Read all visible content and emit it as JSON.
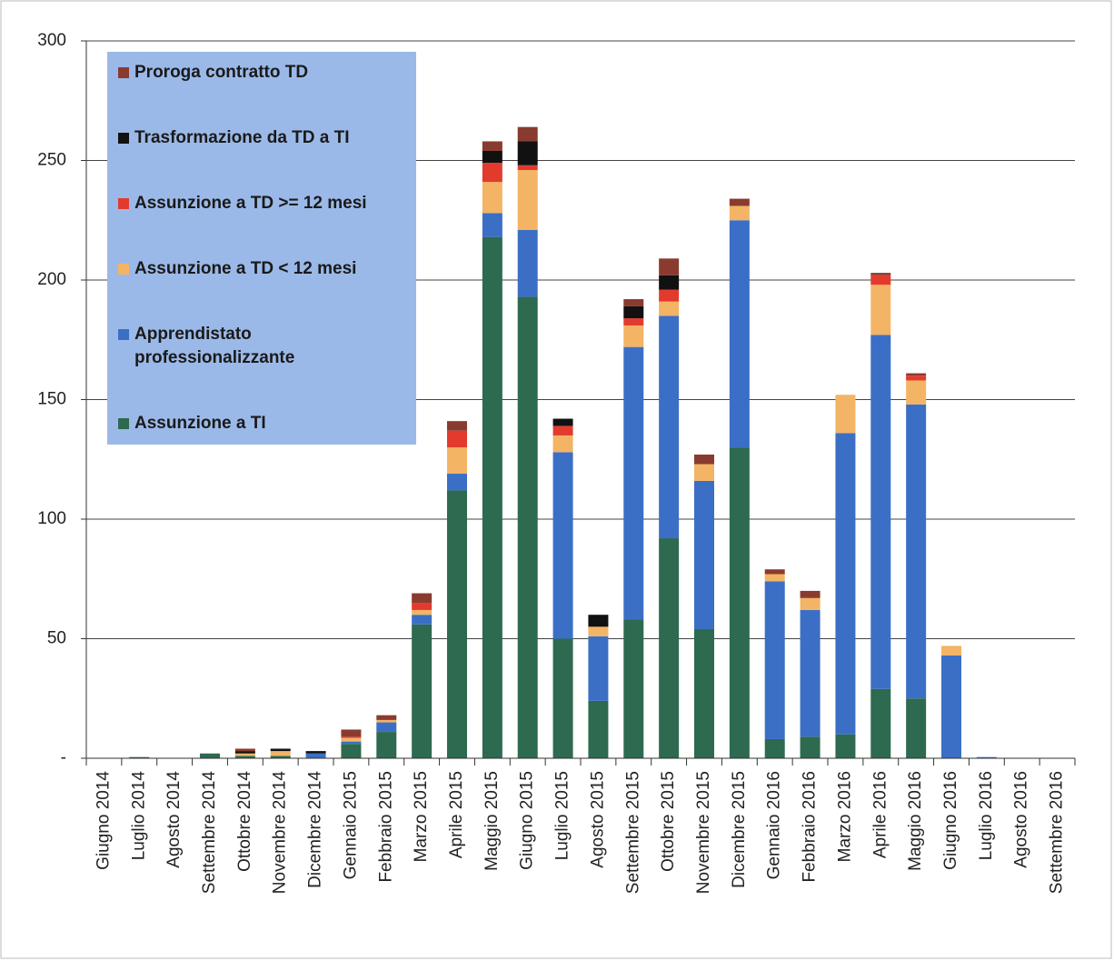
{
  "chart_data": {
    "type": "stacked-bar",
    "categories": [
      "Giugno 2014",
      "Luglio 2014",
      "Agosto 2014",
      "Settembre 2014",
      "Ottobre 2014",
      "Novembre 2014",
      "Dicembre 2014",
      "Gennaio 2015",
      "Febbraio 2015",
      "Marzo 2015",
      "Aprile 2015",
      "Maggio 2015",
      "Giugno 2015",
      "Luglio 2015",
      "Agosto 2015",
      "Settembre 2015",
      "Ottobre 2015",
      "Novembre 2015",
      "Dicembre 2015",
      "Gennaio 2016",
      "Febbraio 2016",
      "Marzo 2016",
      "Aprile 2016",
      "Maggio 2016",
      "Giugno 2016",
      "Luglio 2016",
      "Agosto 2016",
      "Settembre 2016"
    ],
    "series": [
      {
        "name": "Assunzione a TI",
        "color": "#2d6a4f",
        "values": [
          0,
          0.5,
          0,
          2,
          1,
          1,
          0,
          6,
          11,
          56,
          112,
          218,
          193,
          50,
          24,
          58,
          92,
          54,
          130,
          8,
          9,
          10,
          29,
          25,
          0,
          0,
          0,
          0
        ]
      },
      {
        "name": "Apprendistato professionalizzante",
        "color": "#3b6fc6",
        "values": [
          0,
          0,
          0,
          0,
          0,
          0,
          2,
          1,
          4,
          4,
          7,
          10,
          28,
          78,
          27,
          114,
          93,
          62,
          95,
          66,
          53,
          126,
          148,
          123,
          43,
          0.5,
          0,
          0
        ]
      },
      {
        "name": "Assunzione a TD < 12 mesi",
        "color": "#f3b465",
        "values": [
          0,
          0,
          0,
          0,
          1,
          2,
          0,
          1.5,
          1,
          2,
          11,
          13,
          25,
          7,
          4,
          9,
          6,
          7,
          6,
          3,
          5,
          16,
          21,
          10,
          4,
          0,
          0,
          0
        ]
      },
      {
        "name": "Assunzione a TD >= 12 mesi",
        "color": "#e23b2e",
        "values": [
          0,
          0,
          0,
          0,
          0,
          0,
          0,
          0.5,
          0,
          3,
          7,
          8,
          2,
          4,
          0,
          3,
          5,
          0,
          0,
          0,
          0,
          0,
          4,
          2,
          0,
          0,
          0,
          0
        ]
      },
      {
        "name": "Trasformazione da TD a TI",
        "color": "#111111",
        "values": [
          0,
          0,
          0,
          0,
          1,
          1,
          1,
          0,
          0,
          0,
          0,
          5,
          10,
          3,
          5,
          5,
          6,
          0,
          0,
          0,
          0,
          0,
          0,
          0,
          0,
          0,
          0,
          0
        ]
      },
      {
        "name": "Proroga contratto TD",
        "color": "#8a3b2f",
        "values": [
          0,
          0,
          0,
          0,
          1,
          0,
          0,
          3,
          2,
          4,
          4,
          4,
          6,
          0,
          0,
          3,
          7,
          4,
          3,
          2,
          3,
          0,
          1,
          1,
          0,
          0,
          0,
          0
        ]
      }
    ],
    "ylim": [
      0,
      300
    ],
    "yticks": [
      {
        "value": 0,
        "label": "-"
      },
      50,
      100,
      150,
      200,
      250,
      300
    ],
    "grid": true,
    "legend": "upper left"
  }
}
